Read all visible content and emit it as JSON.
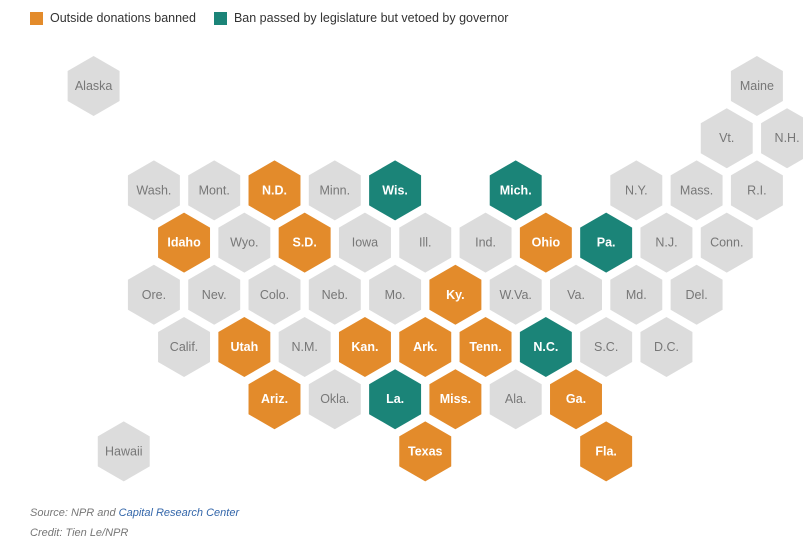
{
  "legend": {
    "items": [
      {
        "label": "Outside donations banned",
        "color": "#e38b2b"
      },
      {
        "label": "Ban passed by legislature but vetoed by governor",
        "color": "#1b8478"
      }
    ]
  },
  "colors": {
    "none": "#dcdcdc",
    "banned": "#e38b2b",
    "vetoed": "#1b8478",
    "label_none": "#777777",
    "label_status": "#ffffff"
  },
  "states": [
    {
      "abbr": "Alaska",
      "row": 0,
      "col": 0,
      "status": "none"
    },
    {
      "abbr": "Maine",
      "row": 0,
      "col": 11,
      "status": "none"
    },
    {
      "abbr": "Vt.",
      "row": 1,
      "col": 10,
      "status": "none"
    },
    {
      "abbr": "N.H.",
      "row": 1,
      "col": 11,
      "status": "none"
    },
    {
      "abbr": "Wash.",
      "row": 2,
      "col": 1,
      "status": "none"
    },
    {
      "abbr": "Mont.",
      "row": 2,
      "col": 2,
      "status": "none"
    },
    {
      "abbr": "N.D.",
      "row": 2,
      "col": 3,
      "status": "banned"
    },
    {
      "abbr": "Minn.",
      "row": 2,
      "col": 4,
      "status": "none"
    },
    {
      "abbr": "Wis.",
      "row": 2,
      "col": 5,
      "status": "vetoed"
    },
    {
      "abbr": "Mich.",
      "row": 2,
      "col": 7,
      "status": "vetoed"
    },
    {
      "abbr": "N.Y.",
      "row": 2,
      "col": 9,
      "status": "none"
    },
    {
      "abbr": "Mass.",
      "row": 2,
      "col": 10,
      "status": "none"
    },
    {
      "abbr": "R.I.",
      "row": 2,
      "col": 11,
      "status": "none"
    },
    {
      "abbr": "Idaho",
      "row": 3,
      "col": 1,
      "status": "banned"
    },
    {
      "abbr": "Wyo.",
      "row": 3,
      "col": 2,
      "status": "none"
    },
    {
      "abbr": "S.D.",
      "row": 3,
      "col": 3,
      "status": "banned"
    },
    {
      "abbr": "Iowa",
      "row": 3,
      "col": 4,
      "status": "none"
    },
    {
      "abbr": "Ill.",
      "row": 3,
      "col": 5,
      "status": "none"
    },
    {
      "abbr": "Ind.",
      "row": 3,
      "col": 6,
      "status": "none"
    },
    {
      "abbr": "Ohio",
      "row": 3,
      "col": 7,
      "status": "banned"
    },
    {
      "abbr": "Pa.",
      "row": 3,
      "col": 8,
      "status": "vetoed"
    },
    {
      "abbr": "N.J.",
      "row": 3,
      "col": 9,
      "status": "none"
    },
    {
      "abbr": "Conn.",
      "row": 3,
      "col": 10,
      "status": "none"
    },
    {
      "abbr": "Ore.",
      "row": 4,
      "col": 1,
      "status": "none"
    },
    {
      "abbr": "Nev.",
      "row": 4,
      "col": 2,
      "status": "none"
    },
    {
      "abbr": "Colo.",
      "row": 4,
      "col": 3,
      "status": "none"
    },
    {
      "abbr": "Neb.",
      "row": 4,
      "col": 4,
      "status": "none"
    },
    {
      "abbr": "Mo.",
      "row": 4,
      "col": 5,
      "status": "none"
    },
    {
      "abbr": "Ky.",
      "row": 4,
      "col": 6,
      "status": "banned"
    },
    {
      "abbr": "W.Va.",
      "row": 4,
      "col": 7,
      "status": "none"
    },
    {
      "abbr": "Va.",
      "row": 4,
      "col": 8,
      "status": "none"
    },
    {
      "abbr": "Md.",
      "row": 4,
      "col": 9,
      "status": "none"
    },
    {
      "abbr": "Del.",
      "row": 4,
      "col": 10,
      "status": "none"
    },
    {
      "abbr": "Calif.",
      "row": 5,
      "col": 1,
      "status": "none"
    },
    {
      "abbr": "Utah",
      "row": 5,
      "col": 2,
      "status": "banned"
    },
    {
      "abbr": "N.M.",
      "row": 5,
      "col": 3,
      "status": "none"
    },
    {
      "abbr": "Kan.",
      "row": 5,
      "col": 4,
      "status": "banned"
    },
    {
      "abbr": "Ark.",
      "row": 5,
      "col": 5,
      "status": "banned"
    },
    {
      "abbr": "Tenn.",
      "row": 5,
      "col": 6,
      "status": "banned"
    },
    {
      "abbr": "N.C.",
      "row": 5,
      "col": 7,
      "status": "vetoed"
    },
    {
      "abbr": "S.C.",
      "row": 5,
      "col": 8,
      "status": "none"
    },
    {
      "abbr": "D.C.",
      "row": 5,
      "col": 9,
      "status": "none"
    },
    {
      "abbr": "Ariz.",
      "row": 6,
      "col": 3,
      "status": "banned"
    },
    {
      "abbr": "Okla.",
      "row": 6,
      "col": 4,
      "status": "none"
    },
    {
      "abbr": "La.",
      "row": 6,
      "col": 5,
      "status": "vetoed"
    },
    {
      "abbr": "Miss.",
      "row": 6,
      "col": 6,
      "status": "banned"
    },
    {
      "abbr": "Ala.",
      "row": 6,
      "col": 7,
      "status": "none"
    },
    {
      "abbr": "Ga.",
      "row": 6,
      "col": 8,
      "status": "banned"
    },
    {
      "abbr": "Hawaii",
      "row": 7,
      "col": 0,
      "status": "none"
    },
    {
      "abbr": "Texas",
      "row": 7,
      "col": 5,
      "status": "banned"
    },
    {
      "abbr": "Fla.",
      "row": 7,
      "col": 8,
      "status": "banned"
    }
  ],
  "footer": {
    "source_prefix": "Source: NPR and ",
    "source_link": "Capital Research Center",
    "credit": "Credit: Tien Le/NPR"
  }
}
